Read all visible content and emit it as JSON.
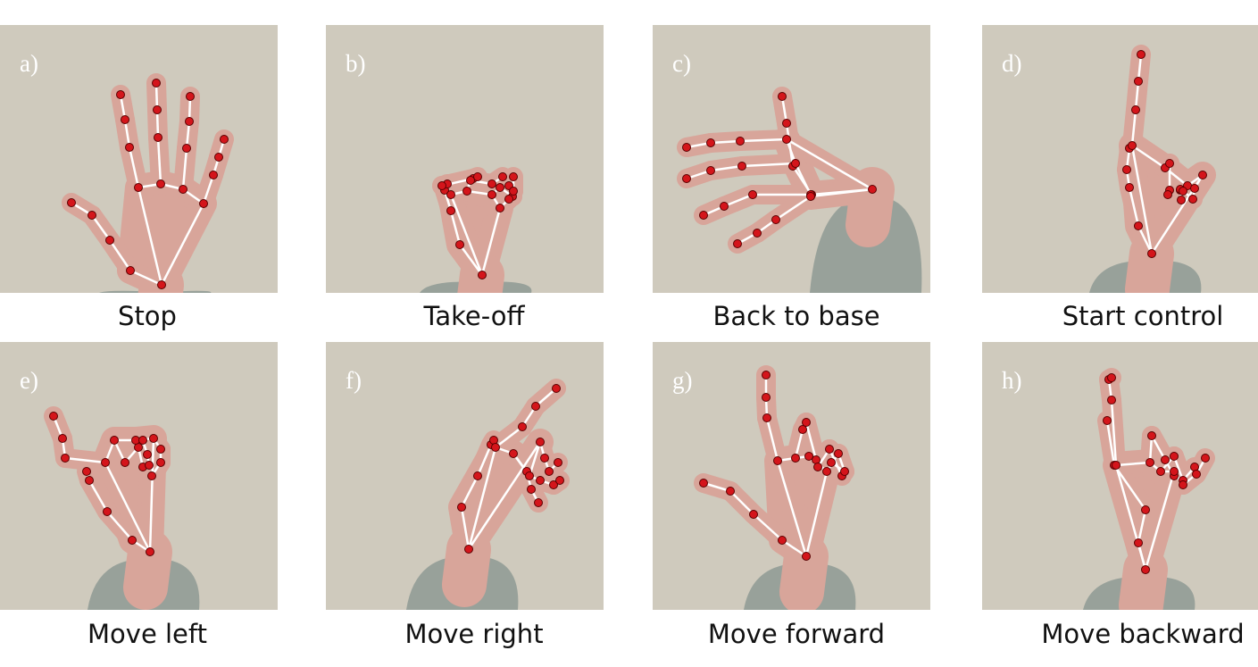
{
  "panels": [
    {
      "tag": "a)",
      "caption": "Stop"
    },
    {
      "tag": "b)",
      "caption": "Take-off"
    },
    {
      "tag": "c)",
      "caption": "Back to base"
    },
    {
      "tag": "d)",
      "caption": "Start control"
    },
    {
      "tag": "e)",
      "caption": "Move left"
    },
    {
      "tag": "f)",
      "caption": "Move right"
    },
    {
      "tag": "g)",
      "caption": "Move forward"
    },
    {
      "tag": "h)",
      "caption": "Move backward"
    }
  ],
  "colors": {
    "wall": "#cfcabd",
    "skin": "#d8a59a",
    "sleeve": "#8e9a94",
    "landmark": "#d4151b",
    "connection": "#ffffff"
  }
}
